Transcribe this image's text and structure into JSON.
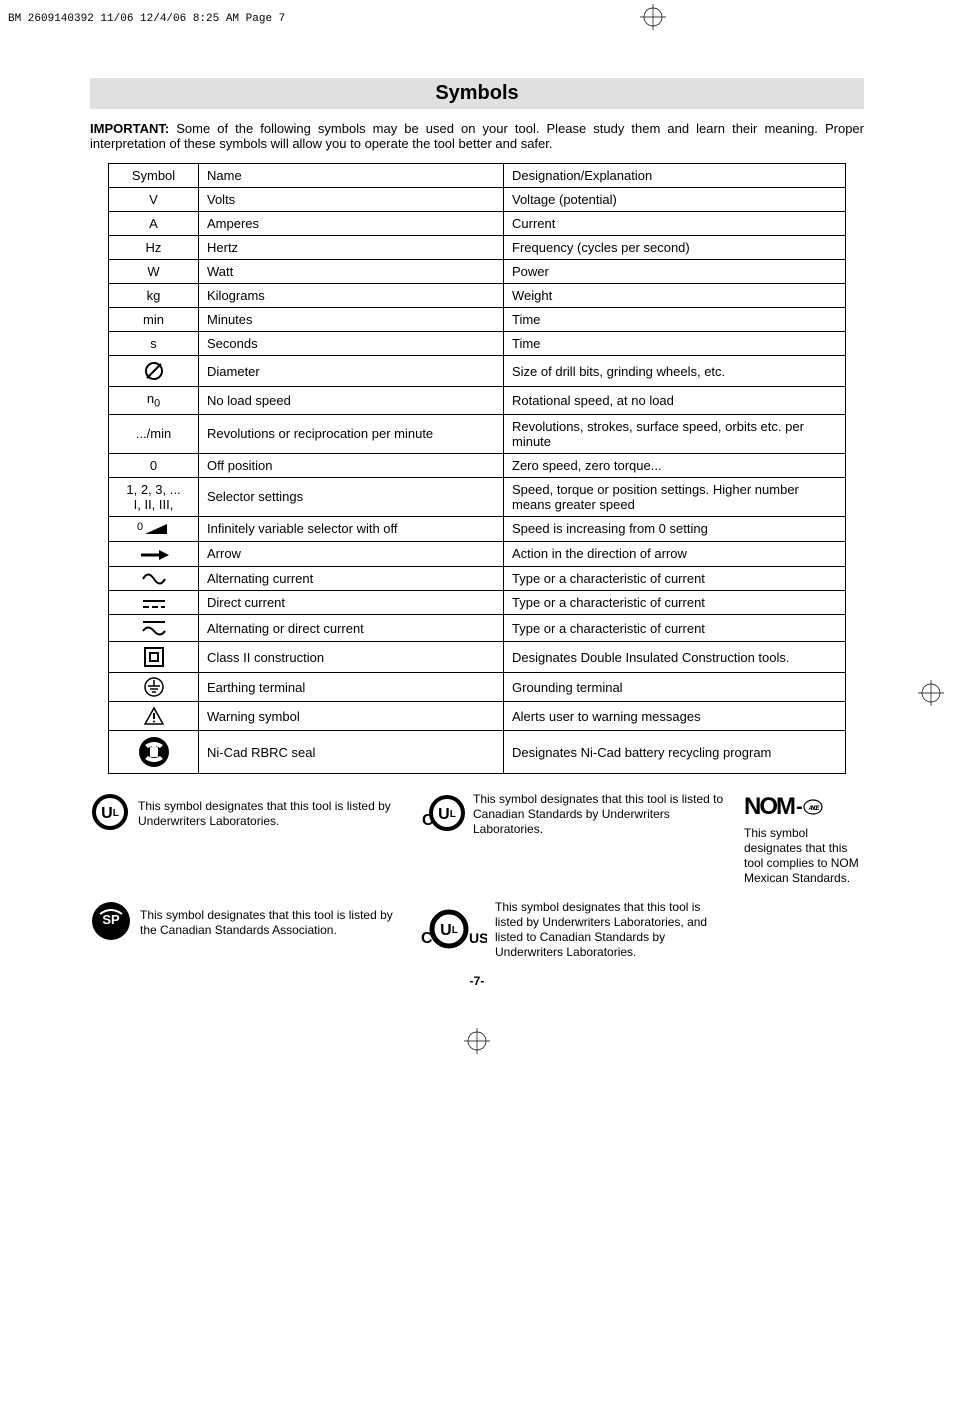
{
  "header": {
    "file_label": "BM 2609140392 11/06  12/4/06  8:25 AM  Page 7"
  },
  "title": "Symbols",
  "intro_strong": "IMPORTANT:",
  "intro_text": " Some of the following symbols may be used on your tool.  Please study them and learn their meaning.  Proper interpretation of these symbols will allow you to operate the tool better and safer.",
  "table": {
    "headers": [
      "Symbol",
      "Name",
      "Designation/Explanation"
    ],
    "rows": [
      {
        "sym_text": "V",
        "name": "Volts",
        "desc": "Voltage (potential)"
      },
      {
        "sym_text": "A",
        "name": "Amperes",
        "desc": "Current"
      },
      {
        "sym_text": "Hz",
        "name": "Hertz",
        "desc": "Frequency (cycles per second)"
      },
      {
        "sym_text": "W",
        "name": "Watt",
        "desc": "Power"
      },
      {
        "sym_text": "kg",
        "name": "Kilograms",
        "desc": "Weight"
      },
      {
        "sym_text": "min",
        "name": "Minutes",
        "desc": "Time"
      },
      {
        "sym_text": "s",
        "name": "Seconds",
        "desc": "Time"
      },
      {
        "sym_svg": "diameter",
        "name": "Diameter",
        "desc": "Size of drill bits, grinding wheels,  etc."
      },
      {
        "sym_html": "n<sub>0</sub>",
        "name": "No load speed",
        "desc": "Rotational speed, at no load"
      },
      {
        "sym_text": ".../min",
        "name": "Revolutions or reciprocation per minute",
        "desc": "Revolutions, strokes, surface speed, orbits etc. per minute"
      },
      {
        "sym_text": "0",
        "name": "Off position",
        "desc": "Zero speed, zero torque..."
      },
      {
        "sym_html": "1, 2, 3, ...<br>I, II, III,",
        "name": "Selector settings",
        "desc": "Speed, torque or position settings. Higher number means greater speed"
      },
      {
        "sym_svg": "ramp",
        "name": "Infinitely variable selector with off",
        "desc": "Speed is increasing from 0 setting"
      },
      {
        "sym_svg": "arrow",
        "name": "Arrow",
        "desc": "Action in the direction of arrow"
      },
      {
        "sym_svg": "sine",
        "name": "Alternating current",
        "desc": "Type or a characteristic of current"
      },
      {
        "sym_svg": "dc",
        "name": "Direct current",
        "desc": "Type or a characteristic of current"
      },
      {
        "sym_svg": "acdc",
        "name": "Alternating or direct current",
        "desc": "Type or a characteristic of current"
      },
      {
        "sym_svg": "class2",
        "name": "Class II  construction",
        "desc": "Designates Double Insulated Construction tools."
      },
      {
        "sym_svg": "earth",
        "name": "Earthing terminal",
        "desc": "Grounding terminal"
      },
      {
        "sym_svg": "warning",
        "name": "Warning symbol",
        "desc": "Alerts user to warning messages"
      },
      {
        "sym_svg": "rbrc",
        "name": "Ni-Cad RBRC seal",
        "desc": "Designates Ni-Cad battery recycling program"
      }
    ]
  },
  "certs": {
    "ul": "This symbol designates that this tool is listed by Underwriters Laboratories.",
    "cul": "This symbol designates that this tool is listed to Canadian Standards by Underwriters Laboratories.",
    "csa": "This symbol designates that this tool is listed by the Canadian Standards Association.",
    "culus": "This symbol designates that this tool is listed by Underwriters Laboratories, and listed to Canadian Standards by Underwriters Laboratories.",
    "nom_text": "This symbol designates that this tool complies to NOM Mexican Standards.",
    "nom_label": "NOM"
  },
  "pagenum": "-7-",
  "colors": {
    "band_bg": "#e0e0e0",
    "text": "#000000",
    "border": "#000000"
  }
}
